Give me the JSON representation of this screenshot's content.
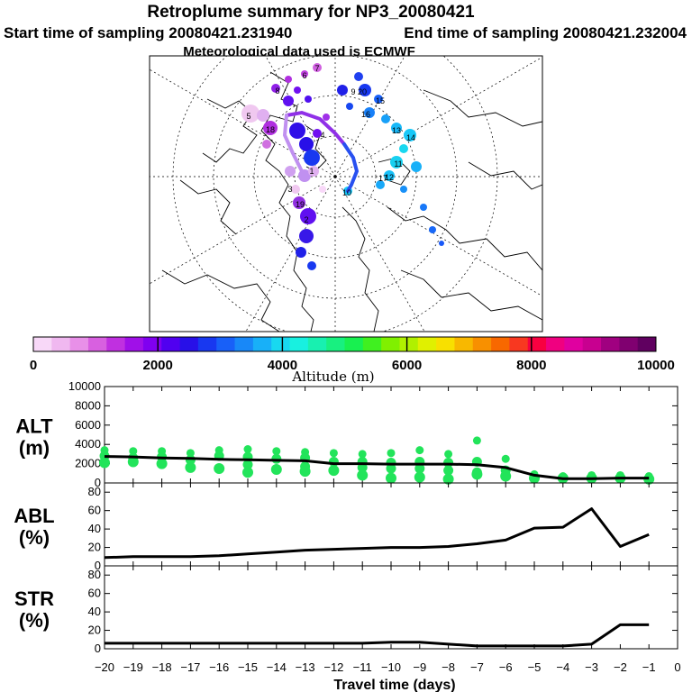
{
  "header": {
    "title": "Retroplume summary for NP3_20080421",
    "start_label": "Start time of sampling 20080421.231940",
    "end_label": "End time of sampling 20080421.232004",
    "met_label": "Meteorological data used is ECMWF"
  },
  "colorbar": {
    "tick_labels": [
      "0",
      "2000",
      "4000",
      "6000",
      "8000",
      "10000"
    ],
    "label": "Altitude (m)",
    "colors": [
      "#f8d8f8",
      "#f0b8f0",
      "#e890e8",
      "#d860e0",
      "#c030e0",
      "#a010e8",
      "#8000f0",
      "#5000f0",
      "#2810e8",
      "#1838f0",
      "#1860f8",
      "#1888f8",
      "#18b0f8",
      "#18d8f0",
      "#18f0e0",
      "#18f0b0",
      "#18f080",
      "#18f050",
      "#40f020",
      "#80f000",
      "#b0f000",
      "#e0f000",
      "#f8e000",
      "#f8b800",
      "#f89000",
      "#f86800",
      "#f83820",
      "#f80040",
      "#f00080",
      "#e000a0",
      "#c80090",
      "#a00080",
      "#800070",
      "#600060"
    ]
  },
  "map": {
    "plume_numbers": [
      "1",
      "2",
      "3",
      "4",
      "5",
      "6",
      "7",
      "8",
      "9",
      "10",
      "11",
      "12",
      "13",
      "14",
      "15",
      "16",
      "17",
      "18",
      "19",
      "20"
    ]
  },
  "chart_data": [
    {
      "type": "line",
      "title": "",
      "name": "ALT",
      "ylabel_line1": "ALT",
      "ylabel_line2": "(m)",
      "ylim": [
        0,
        10000
      ],
      "yticks": [
        0,
        2000,
        4000,
        6000,
        8000,
        10000
      ],
      "x": [
        -20,
        -19,
        -18,
        -17,
        -16,
        -15,
        -14,
        -13,
        -12,
        -11,
        -10,
        -9,
        -8,
        -7,
        -6,
        -5,
        -4,
        -3,
        -2,
        -1
      ],
      "series": [
        {
          "name": "mean altitude",
          "values": [
            2750,
            2700,
            2600,
            2550,
            2450,
            2400,
            2350,
            2300,
            2000,
            2000,
            1950,
            1950,
            1950,
            1900,
            1600,
            800,
            450,
            450,
            500,
            500
          ]
        }
      ],
      "clusters": [
        {
          "x": -20,
          "y": [
            3400,
            2800,
            2100
          ]
        },
        {
          "x": -19,
          "y": [
            3300,
            2600,
            2200
          ]
        },
        {
          "x": -18,
          "y": [
            3300,
            2700,
            2000
          ]
        },
        {
          "x": -17,
          "y": [
            3100,
            2400,
            1600
          ]
        },
        {
          "x": -16,
          "y": [
            3400,
            2800,
            1500
          ]
        },
        {
          "x": -15,
          "y": [
            3500,
            2700,
            1900,
            1100
          ]
        },
        {
          "x": -14,
          "y": [
            3300,
            2500,
            1400
          ]
        },
        {
          "x": -13,
          "y": [
            3200,
            2600,
            1700,
            1200
          ]
        },
        {
          "x": -12,
          "y": [
            3100,
            2200,
            1300
          ]
        },
        {
          "x": -11,
          "y": [
            3000,
            2200,
            1600,
            800
          ]
        },
        {
          "x": -10,
          "y": [
            3100,
            2100,
            1500,
            500
          ]
        },
        {
          "x": -9,
          "y": [
            3400,
            2200,
            1500,
            600
          ]
        },
        {
          "x": -8,
          "y": [
            3000,
            2100,
            1300,
            400
          ]
        },
        {
          "x": -7,
          "y": [
            4400,
            2200,
            1100,
            900
          ]
        },
        {
          "x": -6,
          "y": [
            2500,
            1300,
            700
          ]
        },
        {
          "x": -5,
          "y": [
            900,
            500
          ]
        },
        {
          "x": -4,
          "y": [
            700,
            500
          ]
        },
        {
          "x": -3,
          "y": [
            800,
            500
          ]
        },
        {
          "x": -2,
          "y": [
            800,
            500
          ]
        },
        {
          "x": -1,
          "y": [
            700,
            400
          ]
        }
      ]
    },
    {
      "type": "line",
      "title": "",
      "name": "ABL",
      "ylabel_line1": "ABL",
      "ylabel_line2": "(%)",
      "ylim": [
        0,
        90
      ],
      "yticks": [
        0,
        20,
        40,
        60,
        80
      ],
      "x": [
        -20,
        -19,
        -18,
        -17,
        -16,
        -15,
        -14,
        -13,
        -12,
        -11,
        -10,
        -9,
        -8,
        -7,
        -6,
        -5,
        -4,
        -3,
        -2,
        -1
      ],
      "series": [
        {
          "name": "ABL fraction",
          "values": [
            9,
            10,
            10,
            10,
            11,
            13,
            15,
            17,
            18,
            19,
            20,
            20,
            21,
            24,
            28,
            41,
            42,
            62,
            21,
            34
          ]
        }
      ]
    },
    {
      "type": "line",
      "title": "",
      "name": "STR",
      "ylabel_line1": "STR",
      "ylabel_line2": "(%)",
      "ylim": [
        0,
        90
      ],
      "yticks": [
        0,
        20,
        40,
        60,
        80
      ],
      "x": [
        -20,
        -19,
        -18,
        -17,
        -16,
        -15,
        -14,
        -13,
        -12,
        -11,
        -10,
        -9,
        -8,
        -7,
        -6,
        -5,
        -4,
        -3,
        -2,
        -1
      ],
      "series": [
        {
          "name": "STR fraction",
          "values": [
            6,
            6,
            6,
            6,
            6,
            6,
            6,
            6,
            6,
            6,
            7,
            7,
            5,
            3,
            3,
            3,
            3,
            5,
            26,
            26
          ]
        }
      ]
    }
  ],
  "xaxis": {
    "ticks": [
      -20,
      -19,
      -18,
      -17,
      -16,
      -15,
      -14,
      -13,
      -12,
      -11,
      -10,
      -9,
      -8,
      -7,
      -6,
      -5,
      -4,
      -3,
      -2,
      -1,
      0
    ],
    "tick_labels": [
      "−20",
      "−19",
      "−18",
      "−17",
      "−16",
      "−15",
      "−14",
      "−13",
      "−12",
      "−11",
      "−10",
      "−9",
      "−8",
      "−7",
      "−6",
      "−5",
      "−4",
      "−3",
      "−2",
      "−1",
      "0"
    ],
    "label": "Travel time (days)"
  }
}
